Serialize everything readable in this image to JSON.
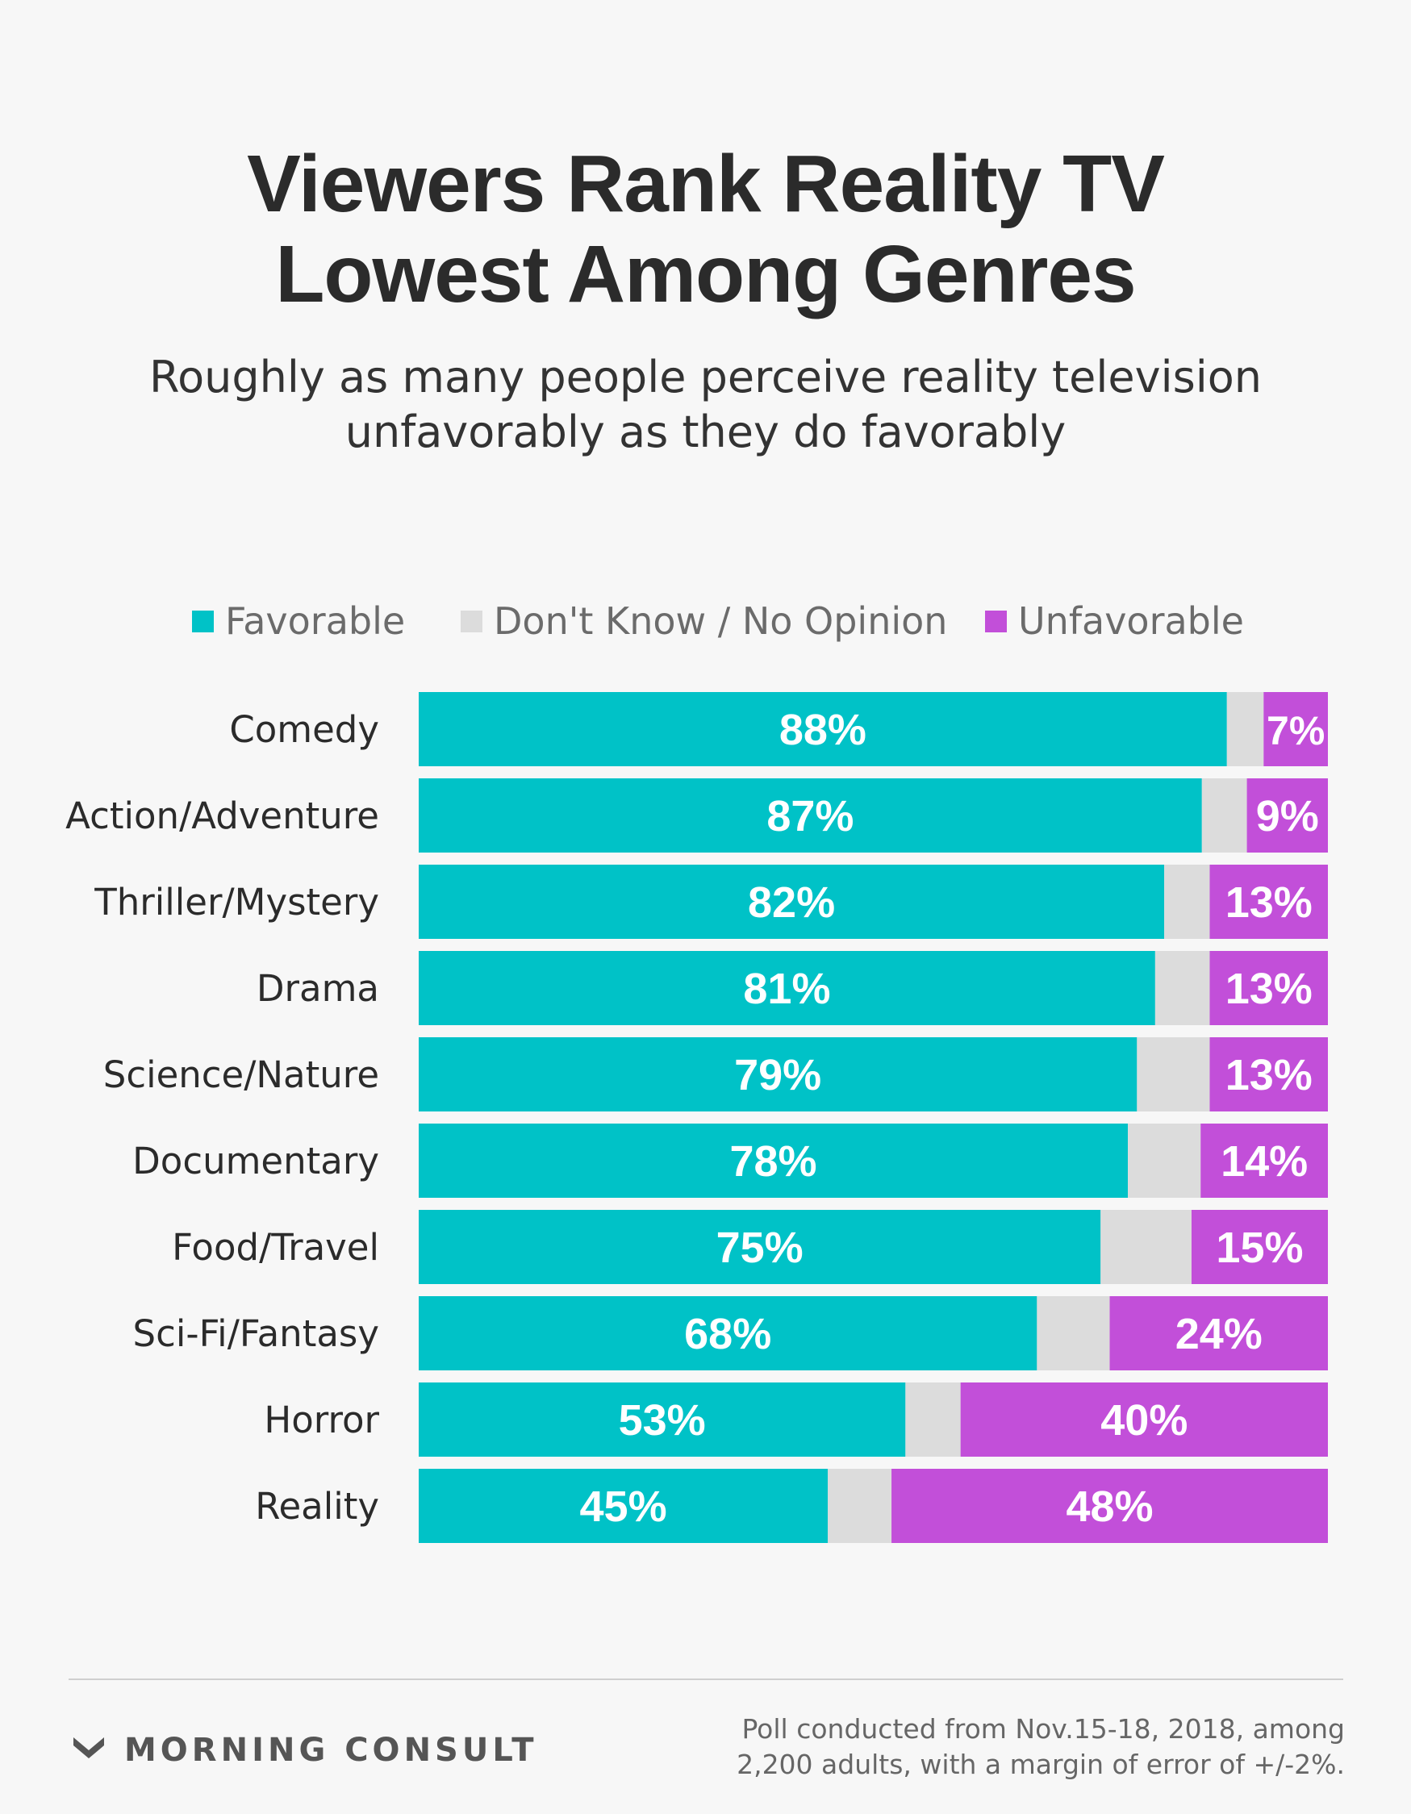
{
  "header": {
    "title_line1": "Viewers Rank Reality TV",
    "title_line2": "Lowest Among Genres",
    "subtitle_line1": "Roughly as many people perceive reality television",
    "subtitle_line2": "unfavorably as they do favorably"
  },
  "legend": {
    "favorable": "Favorable",
    "dont_know": "Don't Know / No Opinion",
    "unfavorable": "Unfavorable"
  },
  "colors": {
    "favorable": "#00c2c7",
    "dont_know": "#dcdcdc",
    "unfavorable": "#c24fd9",
    "background": "#f7f7f7"
  },
  "chart_data": {
    "type": "bar",
    "orientation": "horizontal",
    "stacked": true,
    "categories": [
      "Comedy",
      "Action/Adventure",
      "Thriller/Mystery",
      "Drama",
      "Science/Nature",
      "Documentary",
      "Food/Travel",
      "Sci-Fi/Fantasy",
      "Horror",
      "Reality"
    ],
    "series": [
      {
        "name": "Favorable",
        "values": [
          88,
          87,
          82,
          81,
          79,
          78,
          75,
          68,
          53,
          45
        ]
      },
      {
        "name": "Don't Know / No Opinion",
        "values": [
          4,
          5,
          5,
          6,
          8,
          8,
          10,
          8,
          6,
          7
        ]
      },
      {
        "name": "Unfavorable",
        "values": [
          7,
          9,
          13,
          13,
          13,
          14,
          15,
          24,
          40,
          48
        ]
      }
    ],
    "labeled_series": [
      "Favorable",
      "Unfavorable"
    ],
    "value_suffix": "%",
    "legend_position": "top",
    "grid": false,
    "axes_visible": false
  },
  "footer": {
    "brand": "MORNING CONSULT",
    "brand_icon": "morning-consult-logo-icon",
    "note_line1": "Poll conducted from Nov.15-18, 2018, among",
    "note_line2": "2,200 adults, with a margin of error of +/-2%."
  }
}
